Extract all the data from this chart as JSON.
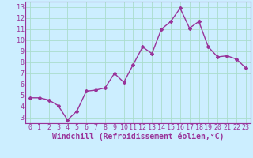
{
  "x": [
    0,
    1,
    2,
    3,
    4,
    5,
    6,
    7,
    8,
    9,
    10,
    11,
    12,
    13,
    14,
    15,
    16,
    17,
    18,
    19,
    20,
    21,
    22,
    23
  ],
  "y": [
    4.8,
    4.8,
    4.6,
    4.1,
    2.8,
    3.6,
    5.4,
    5.5,
    5.7,
    7.0,
    6.2,
    7.8,
    9.4,
    8.8,
    11.0,
    11.7,
    12.9,
    11.1,
    11.7,
    9.4,
    8.5,
    8.6,
    8.3,
    7.5
  ],
  "line_color": "#993399",
  "marker": "D",
  "marker_size": 2.0,
  "line_width": 1.0,
  "xlabel": "Windchill (Refroidissement éolien,°C)",
  "xlim": [
    -0.5,
    23.5
  ],
  "ylim": [
    2.5,
    13.5
  ],
  "yticks": [
    3,
    4,
    5,
    6,
    7,
    8,
    9,
    10,
    11,
    12,
    13
  ],
  "xticks": [
    0,
    1,
    2,
    3,
    4,
    5,
    6,
    7,
    8,
    9,
    10,
    11,
    12,
    13,
    14,
    15,
    16,
    17,
    18,
    19,
    20,
    21,
    22,
    23
  ],
  "bg_color": "#cceeff",
  "grid_color": "#aaddcc",
  "spine_color": "#993399",
  "tick_color": "#993399",
  "label_color": "#993399",
  "xlabel_fontsize": 7.0,
  "tick_fontsize": 6.0
}
